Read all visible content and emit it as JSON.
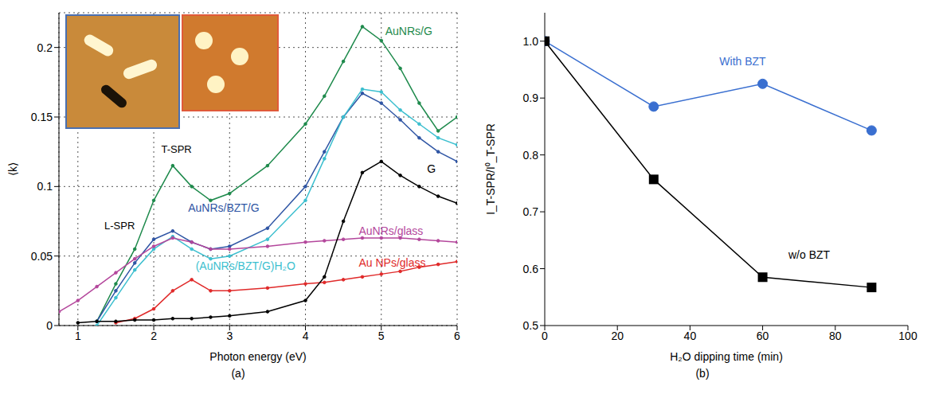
{
  "chart_data": [
    {
      "type": "line",
      "panel_label": "(a)",
      "x_label": "Photon energy (eV)",
      "y_label": "⟨k⟩",
      "x": [
        0.75,
        1,
        1.25,
        1.5,
        1.75,
        2,
        2.25,
        2.5,
        2.75,
        3,
        3.5,
        4,
        4.25,
        4.5,
        4.75,
        5,
        5.25,
        5.5,
        5.75,
        6
      ],
      "series": [
        {
          "name": "AuNRs/G",
          "color": "#1e8a4c",
          "marker": "circle",
          "values": [
            null,
            null,
            0.003,
            0.03,
            0.055,
            0.09,
            0.115,
            0.1,
            0.09,
            0.095,
            0.115,
            0.145,
            0.165,
            0.19,
            0.215,
            0.205,
            0.185,
            0.16,
            0.14,
            0.15
          ]
        },
        {
          "name": "AuNRs/BZT/G",
          "color": "#2f55a4",
          "marker": "circle",
          "values": [
            null,
            null,
            0.003,
            0.025,
            0.045,
            0.062,
            0.068,
            0.06,
            0.055,
            0.057,
            0.07,
            0.1,
            0.125,
            0.15,
            0.167,
            0.16,
            0.148,
            0.135,
            0.125,
            0.118
          ]
        },
        {
          "name": "(AuNRs/BZT/G)H₂O",
          "color": "#3cbfcf",
          "marker": "circle",
          "values": [
            null,
            null,
            0.0,
            0.02,
            0.04,
            0.055,
            0.064,
            0.055,
            0.048,
            0.05,
            0.062,
            0.09,
            0.12,
            0.15,
            0.17,
            0.168,
            0.155,
            0.145,
            0.135,
            0.13
          ]
        },
        {
          "name": "AuNRs/glass",
          "color": "#b4479c",
          "marker": "circle",
          "values": [
            0.01,
            0.018,
            0.028,
            0.038,
            0.048,
            0.057,
            0.063,
            0.06,
            0.055,
            0.055,
            0.057,
            0.06,
            0.061,
            0.062,
            0.063,
            0.063,
            0.063,
            0.062,
            0.061,
            0.06
          ]
        },
        {
          "name": "Au NPs/glass",
          "color": "#e02a2a",
          "marker": "circle",
          "values": [
            null,
            null,
            null,
            0.002,
            0.005,
            0.012,
            0.025,
            0.033,
            0.025,
            0.025,
            0.027,
            0.03,
            0.031,
            0.033,
            0.035,
            0.037,
            0.039,
            0.042,
            0.044,
            0.046
          ]
        },
        {
          "name": "G",
          "color": "#000000",
          "marker": "circle",
          "values": [
            null,
            0.002,
            0.003,
            0.003,
            0.004,
            0.004,
            0.005,
            0.005,
            0.006,
            0.007,
            0.01,
            0.018,
            0.035,
            0.075,
            0.11,
            0.118,
            0.108,
            0.1,
            0.093,
            0.088
          ]
        }
      ],
      "annotations": [
        {
          "text": "L-SPR",
          "x": 1.55,
          "y": 0.072
        },
        {
          "text": "T-SPR",
          "x": 2.3,
          "y": 0.127
        }
      ],
      "xlim": [
        0.75,
        6
      ],
      "xticks": [
        1,
        2,
        3,
        4,
        5,
        6
      ],
      "ylim": [
        0,
        0.225
      ],
      "yticks": [
        0,
        0.05,
        0.1,
        0.15,
        0.2
      ],
      "grid": true
    },
    {
      "type": "line",
      "panel_label": "(b)",
      "x_label": "H₂O dipping time (min)",
      "y_label": "I_T-SPR/I⁰_T-SPR",
      "x": [
        0,
        30,
        60,
        90
      ],
      "series": [
        {
          "name": "With BZT",
          "color": "#3a6fd0",
          "marker": "circle",
          "values": [
            1.0,
            0.885,
            0.925,
            0.843
          ]
        },
        {
          "name": "w/o BZT",
          "color": "#000000",
          "marker": "square",
          "values": [
            1.0,
            0.757,
            0.585,
            0.567
          ]
        }
      ],
      "xlim": [
        0,
        100
      ],
      "xticks": [
        0,
        20,
        40,
        60,
        80,
        100
      ],
      "ylim": [
        0.5,
        1.05
      ],
      "yticks": [
        0.5,
        0.6,
        0.7,
        0.8,
        0.9,
        {
          "value": 1,
          "label": "1.0"
        }
      ],
      "grid": false
    }
  ]
}
